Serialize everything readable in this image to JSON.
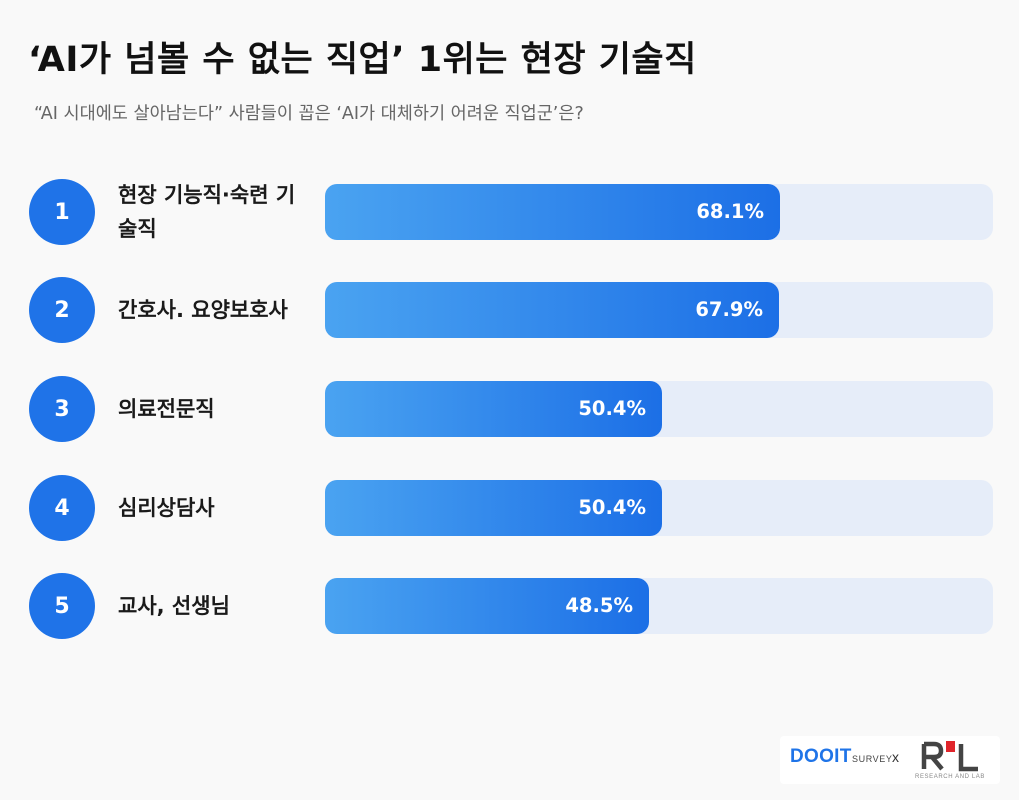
{
  "header": {
    "title": "‘AI가 넘볼 수 없는 직업’ 1위는 현장 기술직",
    "subtitle": "“AI 시대에도 살아남는다” 사람들이 꼽은 ‘AI가 대체하기 어려운 직업군’은?"
  },
  "chart_data": {
    "type": "bar",
    "orientation": "horizontal",
    "title": "‘AI가 넘볼 수 없는 직업’ 1위는 현장 기술직",
    "subtitle": "“AI 시대에도 살아남는다” 사람들이 꼽은 ‘AI가 대체하기 어려운 직업군’은?",
    "ranks": [
      "1",
      "2",
      "3",
      "4",
      "5"
    ],
    "categories": [
      "현장 기능직·숙련 기술직",
      "간호사. 요양보호사",
      "의료전문직",
      "심리상담사",
      "교사, 선생님"
    ],
    "values": [
      68.1,
      67.9,
      50.4,
      50.4,
      48.5
    ],
    "value_labels": [
      "68.1%",
      "67.9%",
      "50.4%",
      "50.4%",
      "48.5%"
    ],
    "xlim": [
      0,
      100
    ],
    "unit": "%",
    "grid": false,
    "legend": "none",
    "colors": {
      "bar_start": "#4aa3f1",
      "bar_end": "#1c6fe6",
      "track": "#e6edf9",
      "rank_circle": "#1f73e8"
    }
  },
  "logos": {
    "brand": "DOOIT",
    "brand_suffix": "SURVEY",
    "separator": "x",
    "partner": "R'L",
    "partner_caption": "RESEARCH AND LAB",
    "brand_color": "#1f74e8",
    "partner_color": "#e0252b"
  }
}
